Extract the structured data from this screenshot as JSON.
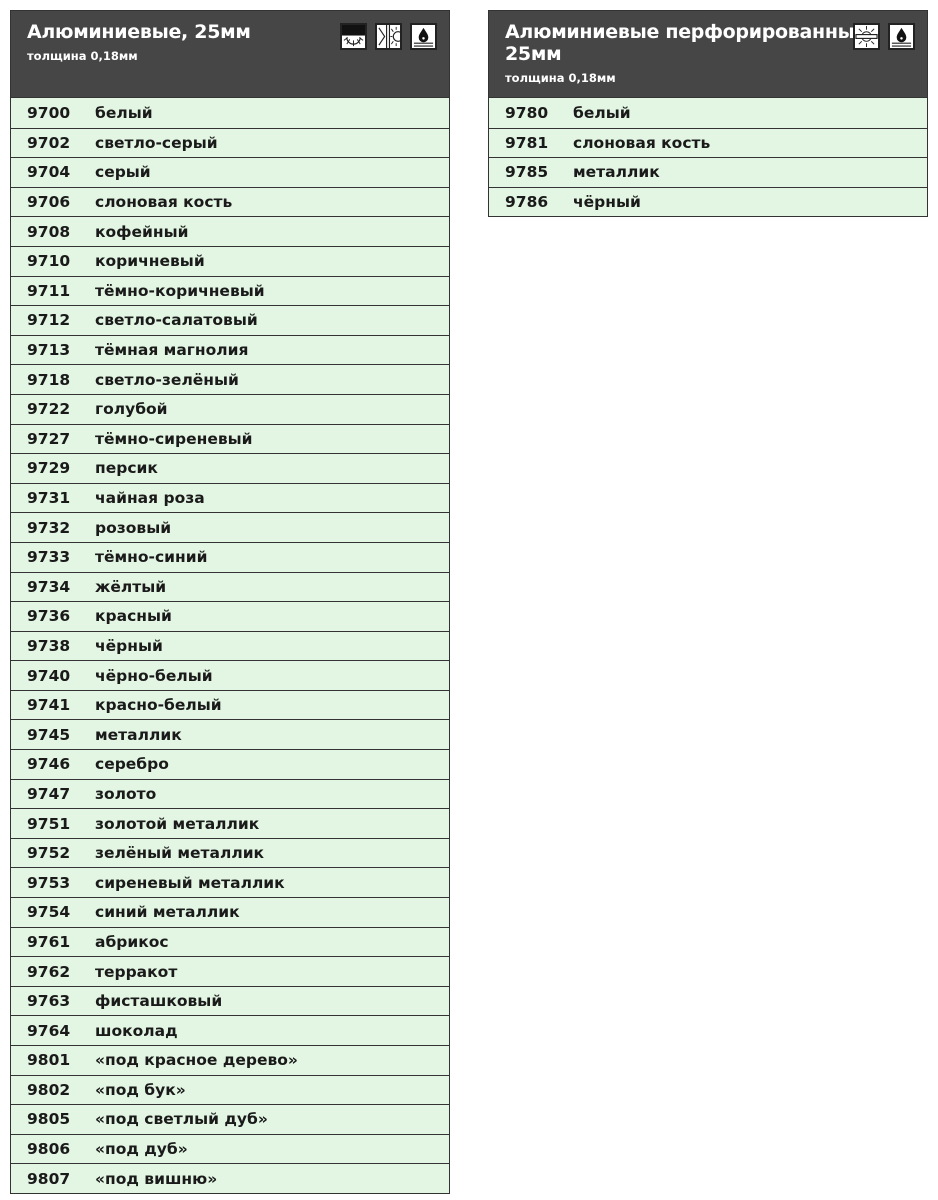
{
  "tables": [
    {
      "title": "Алюминиевые, 25мм",
      "subtitle": "толщина 0,18мм",
      "icons": [
        "shade-sun-icon",
        "window-sun-icon",
        "water-drop-icon"
      ],
      "rows": [
        [
          "9700",
          "белый"
        ],
        [
          "9702",
          "светло-серый"
        ],
        [
          "9704",
          "серый"
        ],
        [
          "9706",
          "слоновая кость"
        ],
        [
          "9708",
          "кофейный"
        ],
        [
          "9710",
          "коричневый"
        ],
        [
          "9711",
          "тёмно-коричневый"
        ],
        [
          "9712",
          "светло-салатовый"
        ],
        [
          "9713",
          "тёмная магнолия"
        ],
        [
          "9718",
          "светло-зелёный"
        ],
        [
          "9722",
          "голубой"
        ],
        [
          "9727",
          "тёмно-сиреневый"
        ],
        [
          "9729",
          "персик"
        ],
        [
          "9731",
          "чайная роза"
        ],
        [
          "9732",
          "розовый"
        ],
        [
          "9733",
          "тёмно-синий"
        ],
        [
          "9734",
          "жёлтый"
        ],
        [
          "9736",
          "красный"
        ],
        [
          "9738",
          "чёрный"
        ],
        [
          "9740",
          "чёрно-белый"
        ],
        [
          "9741",
          "красно-белый"
        ],
        [
          "9745",
          "металлик"
        ],
        [
          "9746",
          "серебро"
        ],
        [
          "9747",
          "золото"
        ],
        [
          "9751",
          "золотой металлик"
        ],
        [
          "9752",
          "зелёный металлик"
        ],
        [
          "9753",
          "сиреневый металлик"
        ],
        [
          "9754",
          "синий металлик"
        ],
        [
          "9761",
          "абрикос"
        ],
        [
          "9762",
          "терракот"
        ],
        [
          "9763",
          "фисташковый"
        ],
        [
          "9764",
          "шоколад"
        ],
        [
          "9801",
          "«под красное дерево»"
        ],
        [
          "9802",
          "«под бук»"
        ],
        [
          "9805",
          "«под светлый дуб»"
        ],
        [
          "9806",
          "«под дуб»"
        ],
        [
          "9807",
          "«под вишню»"
        ]
      ]
    },
    {
      "title": "Алюминиевые перфорированные, 25мм",
      "subtitle": "толщина 0,18мм",
      "icons": [
        "perforated-sun-icon",
        "water-drop-icon"
      ],
      "rows": [
        [
          "9780",
          "белый"
        ],
        [
          "9781",
          "слоновая кость"
        ],
        [
          "9785",
          "металлик"
        ],
        [
          "9786",
          "чёрный"
        ]
      ]
    }
  ],
  "colors": {
    "header": "#464646",
    "row": "#e3f6e3"
  }
}
